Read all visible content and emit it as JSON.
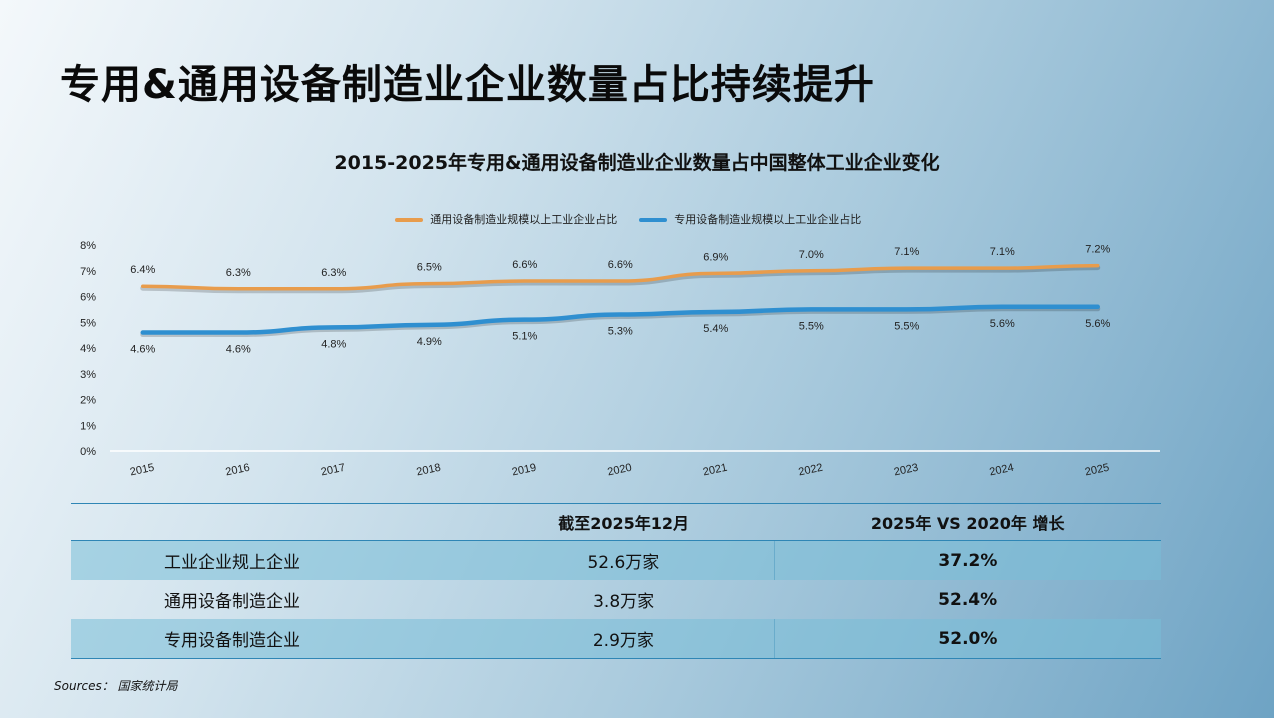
{
  "page_title": "专用&通用设备制造业企业数量占比持续提升",
  "chart_data": {
    "type": "line",
    "title": "2015-2025年专用&通用设备制造业企业数量占中国整体工业企业变化",
    "categories": [
      "2015",
      "2016",
      "2017",
      "2018",
      "2019",
      "2020",
      "2021",
      "2022",
      "2023",
      "2024",
      "2025"
    ],
    "series": [
      {
        "name": "通用设备制造业规模以上工业企业占比",
        "color": "#e89c4c",
        "values": [
          6.4,
          6.3,
          6.3,
          6.5,
          6.6,
          6.6,
          6.9,
          7.0,
          7.1,
          7.1,
          7.2
        ],
        "labels": [
          "6.4%",
          "6.3%",
          "6.3%",
          "6.5%",
          "6.6%",
          "6.6%",
          "6.9%",
          "7.0%",
          "7.1%",
          "7.1%",
          "7.2%"
        ],
        "label_position": "above"
      },
      {
        "name": "专用设备制造业规模以上工业企业占比",
        "color": "#2f8fd0",
        "values": [
          4.6,
          4.6,
          4.8,
          4.9,
          5.1,
          5.3,
          5.4,
          5.5,
          5.5,
          5.6,
          5.6
        ],
        "labels": [
          "4.6%",
          "4.6%",
          "4.8%",
          "4.9%",
          "5.1%",
          "5.3%",
          "5.4%",
          "5.5%",
          "5.5%",
          "5.6%",
          "5.6%"
        ],
        "label_position": "below"
      }
    ],
    "ylim": [
      0,
      8
    ],
    "yticks": [
      0,
      1,
      2,
      3,
      4,
      5,
      6,
      7,
      8
    ],
    "ytick_labels": [
      "0%",
      "1%",
      "2%",
      "3%",
      "4%",
      "5%",
      "6%",
      "7%",
      "8%"
    ],
    "grid": false,
    "legend_position": "top-center"
  },
  "table": {
    "headers": [
      "",
      "截至2025年12月",
      "2025年 VS 2020年 增长"
    ],
    "rows": [
      {
        "label": "工业企业规上企业",
        "value": "52.6万家",
        "growth": "37.2%"
      },
      {
        "label": "通用设备制造企业",
        "value": "3.8万家",
        "growth": "52.4%"
      },
      {
        "label": "专用设备制造企业",
        "value": "2.9万家",
        "growth": "52.0%"
      }
    ]
  },
  "sources": "Sources： 国家统计局"
}
